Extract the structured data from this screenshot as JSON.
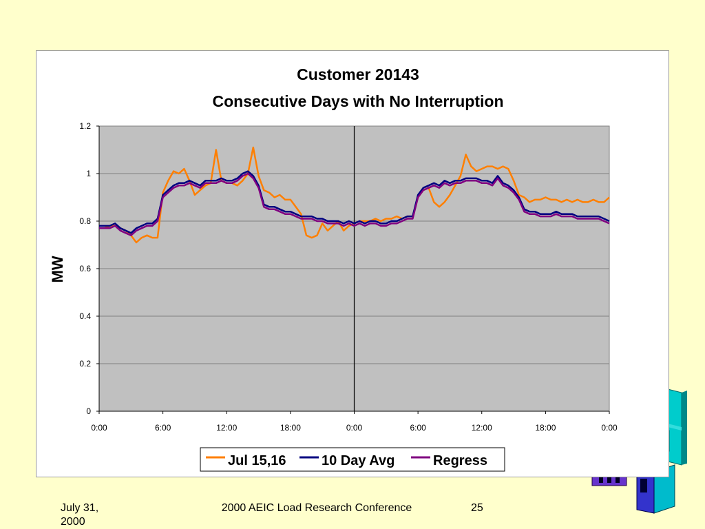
{
  "slide": {
    "footer_date": "July 31, 2000",
    "footer_conference": "2000 AEIC Load Research Conference",
    "page_number": "25",
    "background_color": "#ffffcc"
  },
  "chart_data": {
    "type": "line",
    "title": "Customer 20143",
    "subtitle": "Consecutive Days with No Interruption",
    "ylabel": "MW",
    "xlabel": "",
    "ylim": [
      0,
      1.2
    ],
    "yticks": [
      0,
      0.2,
      0.4,
      0.6,
      0.8,
      1,
      1.2
    ],
    "ytick_labels": [
      "0",
      "0.2",
      "0.4",
      "0.6",
      "0.8",
      "1",
      "1.2"
    ],
    "xlim": [
      0,
      48
    ],
    "xticks": [
      0,
      6,
      12,
      18,
      24,
      30,
      36,
      42,
      48
    ],
    "xtick_labels": [
      "0:00",
      "6:00",
      "12:00",
      "18:00",
      "0:00",
      "6:00",
      "12:00",
      "18:00",
      "0:00"
    ],
    "day_divider_hour": 24,
    "plot_background": "#c0c0c0",
    "grid": true,
    "legend_position": "bottom",
    "x_hours": [
      0,
      0.5,
      1,
      1.5,
      2,
      2.5,
      3,
      3.5,
      4,
      4.5,
      5,
      5.5,
      6,
      6.5,
      7,
      7.5,
      8,
      8.5,
      9,
      9.5,
      10,
      10.5,
      11,
      11.5,
      12,
      12.5,
      13,
      13.5,
      14,
      14.5,
      15,
      15.5,
      16,
      16.5,
      17,
      17.5,
      18,
      18.5,
      19,
      19.5,
      20,
      20.5,
      21,
      21.5,
      22,
      22.5,
      23,
      23.5,
      24,
      24.5,
      25,
      25.5,
      26,
      26.5,
      27,
      27.5,
      28,
      28.5,
      29,
      29.5,
      30,
      30.5,
      31,
      31.5,
      32,
      32.5,
      33,
      33.5,
      34,
      34.5,
      35,
      35.5,
      36,
      36.5,
      37,
      37.5,
      38,
      38.5,
      39,
      39.5,
      40,
      40.5,
      41,
      41.5,
      42,
      42.5,
      43,
      43.5,
      44,
      44.5,
      45,
      45.5,
      46,
      46.5,
      47,
      47.5,
      48
    ],
    "series": [
      {
        "name": "Jul 15,16",
        "color": "#ff7f00",
        "values": [
          0.77,
          0.77,
          0.78,
          0.78,
          0.77,
          0.76,
          0.74,
          0.71,
          0.73,
          0.74,
          0.73,
          0.73,
          0.92,
          0.97,
          1.01,
          1.0,
          1.02,
          0.97,
          0.91,
          0.93,
          0.95,
          0.96,
          1.1,
          0.97,
          0.96,
          0.96,
          0.95,
          0.97,
          1.0,
          1.11,
          0.99,
          0.93,
          0.92,
          0.9,
          0.91,
          0.89,
          0.89,
          0.86,
          0.83,
          0.74,
          0.73,
          0.74,
          0.79,
          0.76,
          0.78,
          0.8,
          0.76,
          0.78,
          0.79,
          0.8,
          0.8,
          0.8,
          0.81,
          0.8,
          0.81,
          0.81,
          0.82,
          0.81,
          0.82,
          0.82,
          0.9,
          0.93,
          0.94,
          0.88,
          0.86,
          0.88,
          0.91,
          0.95,
          0.99,
          1.08,
          1.03,
          1.01,
          1.02,
          1.03,
          1.03,
          1.02,
          1.03,
          1.02,
          0.97,
          0.91,
          0.9,
          0.88,
          0.89,
          0.89,
          0.9,
          0.89,
          0.89,
          0.88,
          0.89,
          0.88,
          0.89,
          0.88,
          0.88,
          0.89,
          0.88,
          0.88,
          0.9
        ]
      },
      {
        "name": "10 Day Avg",
        "color": "#000080",
        "values": [
          0.78,
          0.78,
          0.78,
          0.79,
          0.77,
          0.76,
          0.75,
          0.77,
          0.78,
          0.79,
          0.79,
          0.81,
          0.91,
          0.93,
          0.95,
          0.96,
          0.96,
          0.97,
          0.96,
          0.95,
          0.97,
          0.97,
          0.97,
          0.98,
          0.97,
          0.97,
          0.98,
          1.0,
          1.01,
          0.99,
          0.95,
          0.87,
          0.86,
          0.86,
          0.85,
          0.84,
          0.84,
          0.83,
          0.82,
          0.82,
          0.82,
          0.81,
          0.81,
          0.8,
          0.8,
          0.8,
          0.79,
          0.8,
          0.79,
          0.8,
          0.79,
          0.8,
          0.8,
          0.79,
          0.79,
          0.8,
          0.8,
          0.81,
          0.82,
          0.82,
          0.91,
          0.94,
          0.95,
          0.96,
          0.95,
          0.97,
          0.96,
          0.97,
          0.97,
          0.98,
          0.98,
          0.98,
          0.97,
          0.97,
          0.96,
          0.99,
          0.96,
          0.95,
          0.93,
          0.9,
          0.85,
          0.84,
          0.84,
          0.83,
          0.83,
          0.83,
          0.84,
          0.83,
          0.83,
          0.83,
          0.82,
          0.82,
          0.82,
          0.82,
          0.82,
          0.81,
          0.8
        ]
      },
      {
        "name": "Regress",
        "color": "#800080",
        "values": [
          0.77,
          0.77,
          0.77,
          0.78,
          0.76,
          0.75,
          0.74,
          0.76,
          0.77,
          0.78,
          0.78,
          0.8,
          0.9,
          0.92,
          0.94,
          0.95,
          0.95,
          0.96,
          0.95,
          0.94,
          0.96,
          0.96,
          0.96,
          0.97,
          0.96,
          0.96,
          0.97,
          0.99,
          1.0,
          0.98,
          0.94,
          0.86,
          0.85,
          0.85,
          0.84,
          0.83,
          0.83,
          0.82,
          0.81,
          0.81,
          0.81,
          0.8,
          0.8,
          0.79,
          0.79,
          0.79,
          0.78,
          0.79,
          0.78,
          0.79,
          0.78,
          0.79,
          0.79,
          0.78,
          0.78,
          0.79,
          0.79,
          0.8,
          0.81,
          0.81,
          0.9,
          0.93,
          0.94,
          0.95,
          0.94,
          0.96,
          0.95,
          0.96,
          0.96,
          0.97,
          0.97,
          0.97,
          0.96,
          0.96,
          0.95,
          0.98,
          0.95,
          0.94,
          0.92,
          0.89,
          0.84,
          0.83,
          0.83,
          0.82,
          0.82,
          0.82,
          0.83,
          0.82,
          0.82,
          0.82,
          0.81,
          0.81,
          0.81,
          0.81,
          0.81,
          0.8,
          0.79
        ]
      }
    ]
  }
}
